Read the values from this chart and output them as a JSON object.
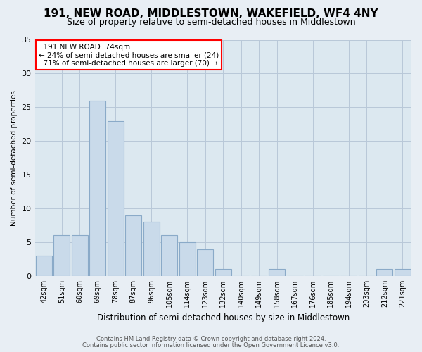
{
  "title": "191, NEW ROAD, MIDDLESTOWN, WAKEFIELD, WF4 4NY",
  "subtitle": "Size of property relative to semi-detached houses in Middlestown",
  "xlabel": "Distribution of semi-detached houses by size in Middlestown",
  "ylabel": "Number of semi-detached properties",
  "footnote1": "Contains HM Land Registry data © Crown copyright and database right 2024.",
  "footnote2": "Contains public sector information licensed under the Open Government Licence v3.0.",
  "categories": [
    "42sqm",
    "51sqm",
    "60sqm",
    "69sqm",
    "78sqm",
    "87sqm",
    "96sqm",
    "105sqm",
    "114sqm",
    "123sqm",
    "132sqm",
    "140sqm",
    "149sqm",
    "158sqm",
    "167sqm",
    "176sqm",
    "185sqm",
    "194sqm",
    "203sqm",
    "212sqm",
    "221sqm"
  ],
  "values": [
    3,
    6,
    6,
    26,
    23,
    9,
    8,
    6,
    5,
    4,
    1,
    0,
    0,
    1,
    0,
    0,
    0,
    0,
    0,
    1,
    1
  ],
  "bar_color": "#c9daea",
  "bar_edge_color": "#8aaac8",
  "property_label": "191 NEW ROAD: 74sqm",
  "pct_smaller": 24,
  "count_smaller": 24,
  "pct_larger": 71,
  "count_larger": 70,
  "annotation_box_edgecolor": "red",
  "ylim": [
    0,
    35
  ],
  "yticks": [
    0,
    5,
    10,
    15,
    20,
    25,
    30,
    35
  ],
  "background_color": "#e8eef4",
  "plot_bg_color": "#dce8f0",
  "grid_color": "#b8c8d8",
  "title_fontsize": 11,
  "subtitle_fontsize": 9
}
